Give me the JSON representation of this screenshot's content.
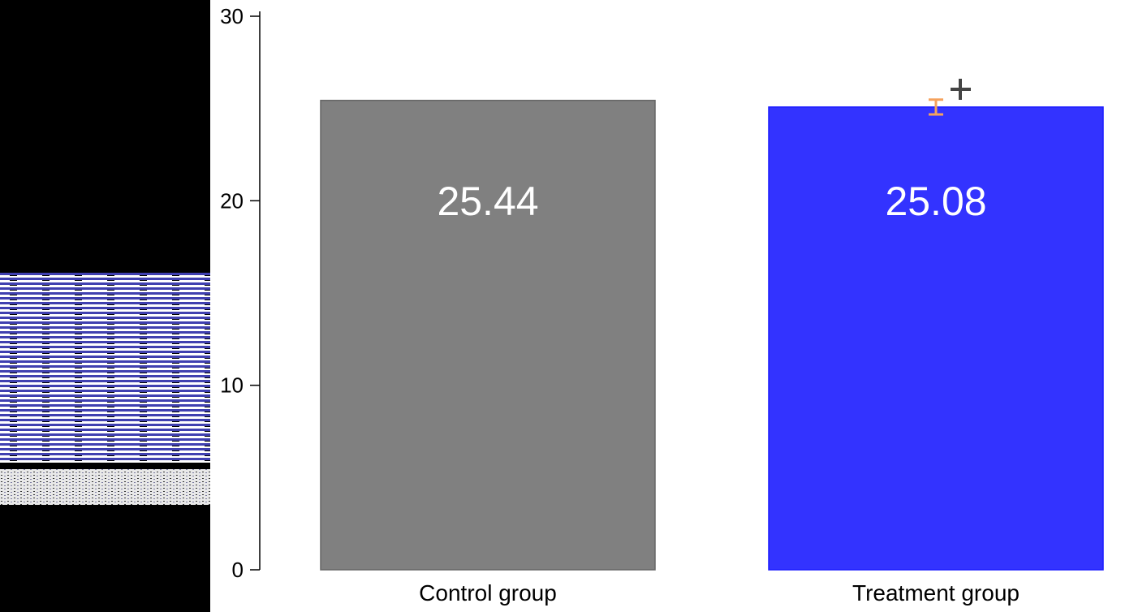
{
  "chart_data": {
    "type": "bar",
    "categories": [
      "Control group",
      "Treatment group"
    ],
    "values": [
      25.44,
      25.08
    ],
    "errors": [
      null,
      0.4
    ],
    "colors": [
      "#808080",
      "#3333ff"
    ],
    "error_color": "#f5a25d",
    "ylim": [
      0,
      30
    ],
    "yticks": [
      0,
      10,
      20,
      30
    ]
  }
}
